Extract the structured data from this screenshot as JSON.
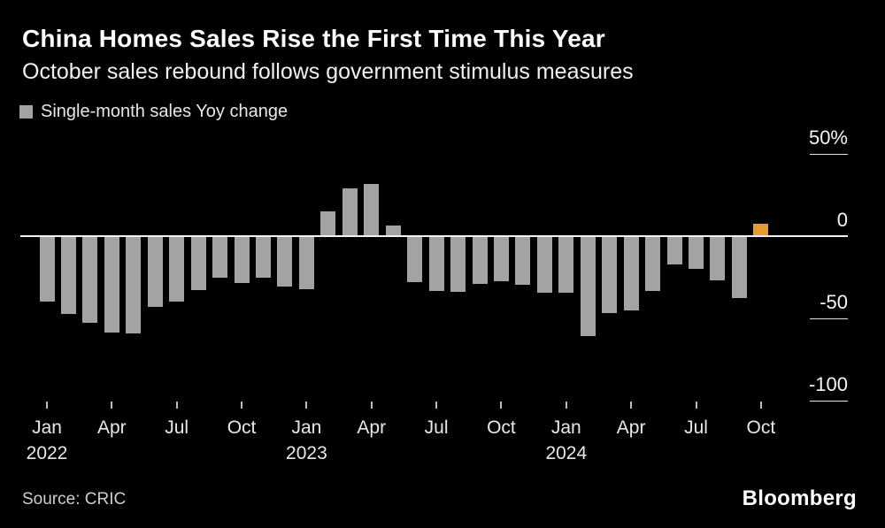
{
  "header": {
    "title": "China Homes Sales Rise the First Time This Year",
    "subtitle": "October sales rebound follows government stimulus measures"
  },
  "legend": {
    "label": "Single-month sales Yoy change"
  },
  "chart_data": {
    "type": "bar",
    "title": "China Homes Sales Rise the First Time This Year",
    "subtitle": "October sales rebound follows government stimulus measures",
    "series_name": "Single-month sales Yoy change",
    "unit": "percent YoY",
    "x": [
      "2022-01",
      "2022-02",
      "2022-03",
      "2022-04",
      "2022-05",
      "2022-06",
      "2022-07",
      "2022-08",
      "2022-09",
      "2022-10",
      "2022-11",
      "2022-12",
      "2023-01",
      "2023-02",
      "2023-03",
      "2023-04",
      "2023-05",
      "2023-06",
      "2023-07",
      "2023-08",
      "2023-09",
      "2023-10",
      "2023-11",
      "2023-12",
      "2024-01",
      "2024-02",
      "2024-03",
      "2024-04",
      "2024-05",
      "2024-06",
      "2024-07",
      "2024-08",
      "2024-09",
      "2024-10"
    ],
    "values": [
      -39.6,
      -47.2,
      -52.7,
      -58.6,
      -59.4,
      -43.2,
      -39.7,
      -32.9,
      -25.4,
      -28.5,
      -25.5,
      -30.8,
      -32.5,
      14.9,
      29.2,
      31.6,
      6.7,
      -28.1,
      -33.1,
      -33.9,
      -29.2,
      -27.5,
      -29.6,
      -34.6,
      -34.2,
      -60.5,
      -47.0,
      -45.0,
      -33.6,
      -17.0,
      -20.1,
      -26.8,
      -37.7,
      7.3
    ],
    "bar_color": "#A3A3A3",
    "highlight_color": "#E89B2D",
    "highlight_index": 33,
    "ylim": [
      -100,
      50
    ],
    "grid": "off",
    "legend_position": "top-left",
    "yticks": [
      {
        "value": 50,
        "label": "50%"
      },
      {
        "value": 0,
        "label": "0"
      },
      {
        "value": -50,
        "label": "-50"
      },
      {
        "value": -100,
        "label": "-100"
      }
    ],
    "xticks": [
      {
        "index": 0,
        "label": "Jan",
        "year": "2022"
      },
      {
        "index": 3,
        "label": "Apr",
        "year": ""
      },
      {
        "index": 6,
        "label": "Jul",
        "year": ""
      },
      {
        "index": 9,
        "label": "Oct",
        "year": ""
      },
      {
        "index": 12,
        "label": "Jan",
        "year": "2023"
      },
      {
        "index": 15,
        "label": "Apr",
        "year": ""
      },
      {
        "index": 18,
        "label": "Jul",
        "year": ""
      },
      {
        "index": 21,
        "label": "Oct",
        "year": ""
      },
      {
        "index": 24,
        "label": "Jan",
        "year": "2024"
      },
      {
        "index": 27,
        "label": "Apr",
        "year": ""
      },
      {
        "index": 30,
        "label": "Jul",
        "year": ""
      },
      {
        "index": 33,
        "label": "Oct",
        "year": ""
      }
    ]
  },
  "footer": {
    "source": "Source: CRIC",
    "brand": "Bloomberg"
  }
}
